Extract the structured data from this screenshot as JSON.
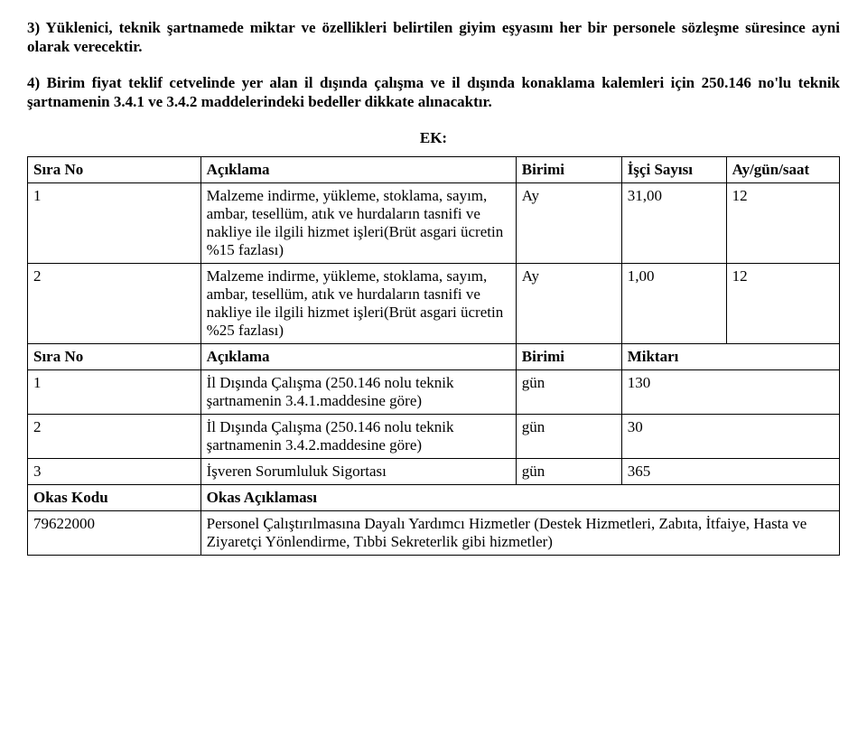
{
  "paragraphs": {
    "p3": "3) Yüklenici, teknik şartnamede miktar ve özellikleri belirtilen giyim eşyasını her bir personele sözleşme süresince ayni olarak verecektir.",
    "p4": "4) Birim fiyat teklif cetvelinde yer alan il dışında çalışma ve il dışında konaklama kalemleri için 250.146 no'lu teknik şartnamenin 3.4.1 ve 3.4.2 maddelerindeki bedeller dikkate alınacaktır."
  },
  "ek_label": "EK:",
  "table1": {
    "headers": {
      "sira": "Sıra No",
      "aciklama": "Açıklama",
      "birimi": "Birimi",
      "isci": "İşçi Sayısı",
      "aygun": "Ay/gün/saat"
    },
    "rows": [
      {
        "sira": "1",
        "aciklama": "Malzeme indirme, yükleme, stoklama, sayım, ambar, tesellüm, atık ve hurdaların tasnifi ve nakliye ile ilgili hizmet işleri(Brüt asgari ücretin %15 fazlası)",
        "birimi": "Ay",
        "isci": "31,00",
        "aygun": "12"
      },
      {
        "sira": "2",
        "aciklama": "Malzeme indirme, yükleme, stoklama, sayım, ambar, tesellüm, atık ve hurdaların tasnifi ve nakliye ile ilgili hizmet işleri(Brüt asgari ücretin %25 fazlası)",
        "birimi": "Ay",
        "isci": "1,00",
        "aygun": "12"
      }
    ]
  },
  "table2": {
    "headers": {
      "sira": "Sıra No",
      "aciklama": "Açıklama",
      "birimi": "Birimi",
      "miktari": "Miktarı"
    },
    "rows": [
      {
        "sira": "1",
        "aciklama": "İl Dışında Çalışma (250.146 nolu teknik şartnamenin 3.4.1.maddesine göre)",
        "birimi": "gün",
        "miktari": "130"
      },
      {
        "sira": "2",
        "aciklama": "İl Dışında Çalışma (250.146 nolu teknik şartnamenin 3.4.2.maddesine göre)",
        "birimi": "gün",
        "miktari": "30"
      },
      {
        "sira": "3",
        "aciklama": "İşveren Sorumluluk Sigortası",
        "birimi": "gün",
        "miktari": "365"
      }
    ]
  },
  "table3": {
    "headers": {
      "okas_kodu": "Okas Kodu",
      "okas_aciklama": "Okas Açıklaması"
    },
    "row": {
      "kodu": "79622000",
      "aciklama": "Personel Çalıştırılmasına Dayalı Yardımcı Hizmetler (Destek Hizmetleri, Zabıta, İtfaiye, Hasta ve Ziyaretçi Yönlendirme, Tıbbi Sekreterlik gibi hizmetler)"
    }
  }
}
